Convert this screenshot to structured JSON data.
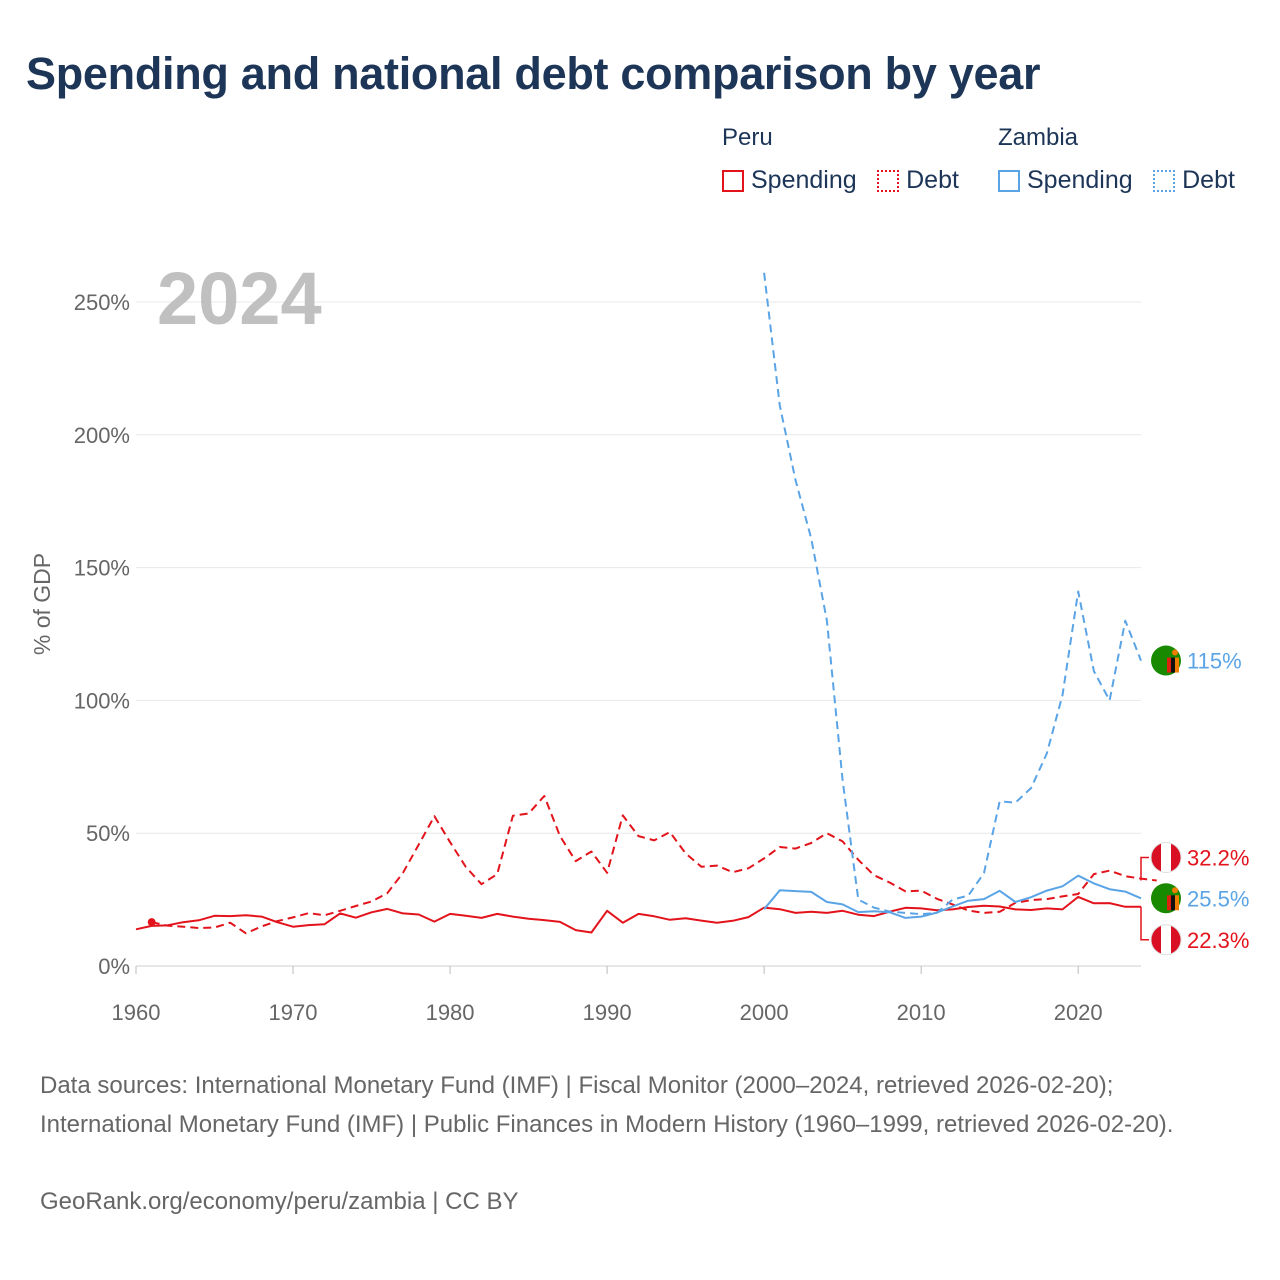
{
  "title": "Spending and national debt comparison by year",
  "legend": {
    "groups": [
      {
        "name": "Peru",
        "color": "#e3131b",
        "items": [
          {
            "label": "Spending",
            "style": "solid"
          },
          {
            "label": "Debt",
            "style": "dotted"
          }
        ]
      },
      {
        "name": "Zambia",
        "color": "#5aa4e6",
        "items": [
          {
            "label": "Spending",
            "style": "solid"
          },
          {
            "label": "Debt",
            "style": "dotted"
          }
        ]
      }
    ]
  },
  "footer": {
    "sources": "Data sources: International Monetary Fund (IMF) | Fiscal Monitor (2000–2024, retrieved 2026-02-20); International Monetary Fund (IMF) | Public Finances in Modern History (1960–1999, retrieved 2026-02-20).",
    "credit": "GeoRank.org/economy/peru/zambia | CC BY"
  },
  "chart_data": {
    "type": "line",
    "year_label": "2024",
    "ylabel": "% of GDP",
    "xlabel": "",
    "xlim": [
      1960,
      2024
    ],
    "ylim": [
      0,
      260
    ],
    "x_ticks": [
      1960,
      1970,
      1980,
      1990,
      2000,
      2010,
      2020
    ],
    "y_ticks": [
      0,
      50,
      100,
      150,
      200,
      250
    ],
    "y_tick_labels": [
      "0%",
      "50%",
      "100%",
      "150%",
      "200%",
      "250%"
    ],
    "grid": true,
    "series": [
      {
        "name": "Peru Spending",
        "country": "Peru",
        "color": "#e3131b",
        "dash": "solid",
        "start_year": 1960,
        "values": [
          13.8,
          15.1,
          15.3,
          16.5,
          17.2,
          18.9,
          18.8,
          19.1,
          18.6,
          16.5,
          14.8,
          15.4,
          15.7,
          19.8,
          18.2,
          20.2,
          21.5,
          19.8,
          19.4,
          16.7,
          19.6,
          18.9,
          18.1,
          19.6,
          18.6,
          17.8,
          17.3,
          16.6,
          13.5,
          12.6,
          20.8,
          16.3,
          19.6,
          18.7,
          17.4,
          18.0,
          17.1,
          16.3,
          17.0,
          18.4,
          22.0,
          21.4,
          20.0,
          20.4,
          20.0,
          20.8,
          19.3,
          18.8,
          20.5,
          21.9,
          21.7,
          21.0,
          21.3,
          22.2,
          22.7,
          22.4,
          21.3,
          21.1,
          21.7,
          21.3,
          26.0,
          23.6,
          23.7,
          22.3,
          22.3
        ],
        "end_label": "22.3%"
      },
      {
        "name": "Peru Debt",
        "country": "Peru",
        "color": "#e3131b",
        "dash": "dashed",
        "start_year": 1961,
        "values": [
          16.5,
          15.2,
          14.8,
          14.3,
          14.5,
          16.3,
          12.3,
          14.9,
          16.9,
          18.3,
          19.9,
          19.1,
          20.8,
          22.6,
          24.3,
          27.4,
          35.1,
          45.7,
          56.4,
          46.6,
          37.3,
          30.8,
          34.6,
          56.6,
          57.4,
          64.0,
          48.9,
          39.5,
          43.1,
          35.1,
          56.7,
          48.9,
          47.3,
          50.4,
          42.4,
          37.4,
          37.8,
          35.3,
          36.8,
          40.5,
          44.8,
          44.2,
          46.3,
          50.0,
          46.9,
          40.0,
          34.2,
          31.4,
          28.1,
          28.4,
          25.3,
          23.2,
          20.9,
          20.0,
          20.4,
          23.8,
          24.8,
          25.2,
          26.2,
          27.1,
          34.6,
          35.9,
          33.8,
          32.9,
          32.2
        ],
        "end_label": "32.2%"
      },
      {
        "name": "Zambia Spending",
        "country": "Zambia",
        "color": "#5aa4e6",
        "dash": "solid",
        "start_year": 2000,
        "values": [
          21.4,
          28.5,
          28.2,
          27.9,
          24.1,
          23.2,
          20.3,
          20.6,
          20.2,
          18.1,
          18.6,
          20.1,
          22.4,
          24.6,
          25.2,
          28.3,
          24.1,
          25.9,
          28.4,
          30.0,
          34.0,
          31.1,
          28.9,
          28.0,
          25.5
        ],
        "end_label": "25.5%"
      },
      {
        "name": "Zambia Debt",
        "country": "Zambia",
        "color": "#5aa4e6",
        "dash": "dashed",
        "start_year": 2000,
        "values": [
          261,
          211,
          183,
          161,
          130,
          70,
          25,
          22,
          20.5,
          20,
          19.5,
          20,
          25,
          26.5,
          35,
          62,
          61.5,
          67,
          80,
          102,
          141,
          111,
          100,
          130,
          115
        ],
        "end_label": "115%"
      }
    ]
  }
}
